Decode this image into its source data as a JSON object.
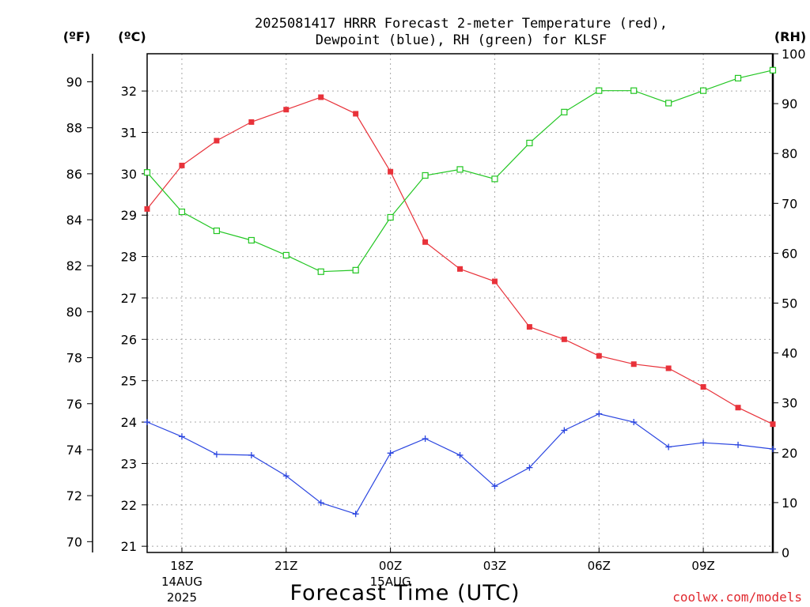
{
  "title_line1": "2025081417 HRRR Forecast 2-meter Temperature (red),",
  "title_line2": "Dewpoint (blue), RH (green) for KLSF",
  "unit_f": "(ºF)",
  "unit_c": "(ºC)",
  "unit_rh": "(RH)",
  "xlabel": "Forecast Time (UTC)",
  "credit": "coolwx.com/models",
  "chart_data": {
    "type": "line",
    "title": "2025081417 HRRR Forecast 2-meter Temperature (red), Dewpoint (blue), RH (green) for KLSF",
    "xlabel": "Forecast Time (UTC)",
    "x": [
      "17Z",
      "18Z",
      "19Z",
      "20Z",
      "21Z",
      "22Z",
      "23Z",
      "00Z",
      "01Z",
      "02Z",
      "03Z",
      "04Z",
      "05Z",
      "06Z",
      "07Z",
      "08Z",
      "09Z",
      "10Z",
      "11Z"
    ],
    "x_ticks": [
      {
        "label": "18Z",
        "index": 1,
        "date": [
          "14AUG",
          "2025"
        ]
      },
      {
        "label": "21Z",
        "index": 4
      },
      {
        "label": "00Z",
        "index": 7,
        "date": [
          "15AUG"
        ]
      },
      {
        "label": "03Z",
        "index": 10
      },
      {
        "label": "06Z",
        "index": 13
      },
      {
        "label": "09Z",
        "index": 16
      }
    ],
    "axes": {
      "fahrenheit": {
        "ticks": [
          70,
          72,
          74,
          76,
          78,
          80,
          82,
          84,
          86,
          88,
          90
        ]
      },
      "celsius": {
        "ticks": [
          21,
          22,
          23,
          24,
          25,
          26,
          27,
          28,
          29,
          30,
          31,
          32
        ],
        "ylim": [
          20.85,
          32.9
        ]
      },
      "rh": {
        "ticks": [
          0,
          10,
          20,
          30,
          40,
          50,
          60,
          70,
          80,
          90,
          100
        ],
        "ylim": [
          0,
          100
        ]
      }
    },
    "grid": true,
    "series": [
      {
        "name": "Temperature",
        "axis": "celsius",
        "color": "#e8323a",
        "marker": "filled-square",
        "values": [
          29.15,
          30.2,
          30.8,
          31.25,
          31.55,
          31.85,
          31.45,
          30.05,
          28.35,
          27.7,
          27.4,
          26.3,
          26.0,
          25.6,
          25.4,
          25.3,
          24.85,
          24.35,
          23.95
        ]
      },
      {
        "name": "Dewpoint",
        "axis": "celsius",
        "color": "#2a45e0",
        "marker": "plus",
        "values": [
          24.0,
          23.65,
          23.22,
          23.2,
          22.7,
          22.05,
          21.78,
          23.25,
          23.6,
          23.2,
          22.45,
          22.9,
          23.8,
          24.2,
          24.0,
          23.4,
          23.5,
          23.45,
          23.35
        ]
      },
      {
        "name": "RH",
        "axis": "rh",
        "color": "#22c622",
        "marker": "hollow-square",
        "values": [
          76.2,
          68.3,
          64.5,
          62.6,
          59.6,
          56.3,
          56.6,
          67.2,
          75.6,
          76.8,
          74.9,
          82.1,
          88.3,
          92.6,
          92.6,
          90.1,
          92.6,
          95.1,
          96.7
        ]
      }
    ]
  }
}
